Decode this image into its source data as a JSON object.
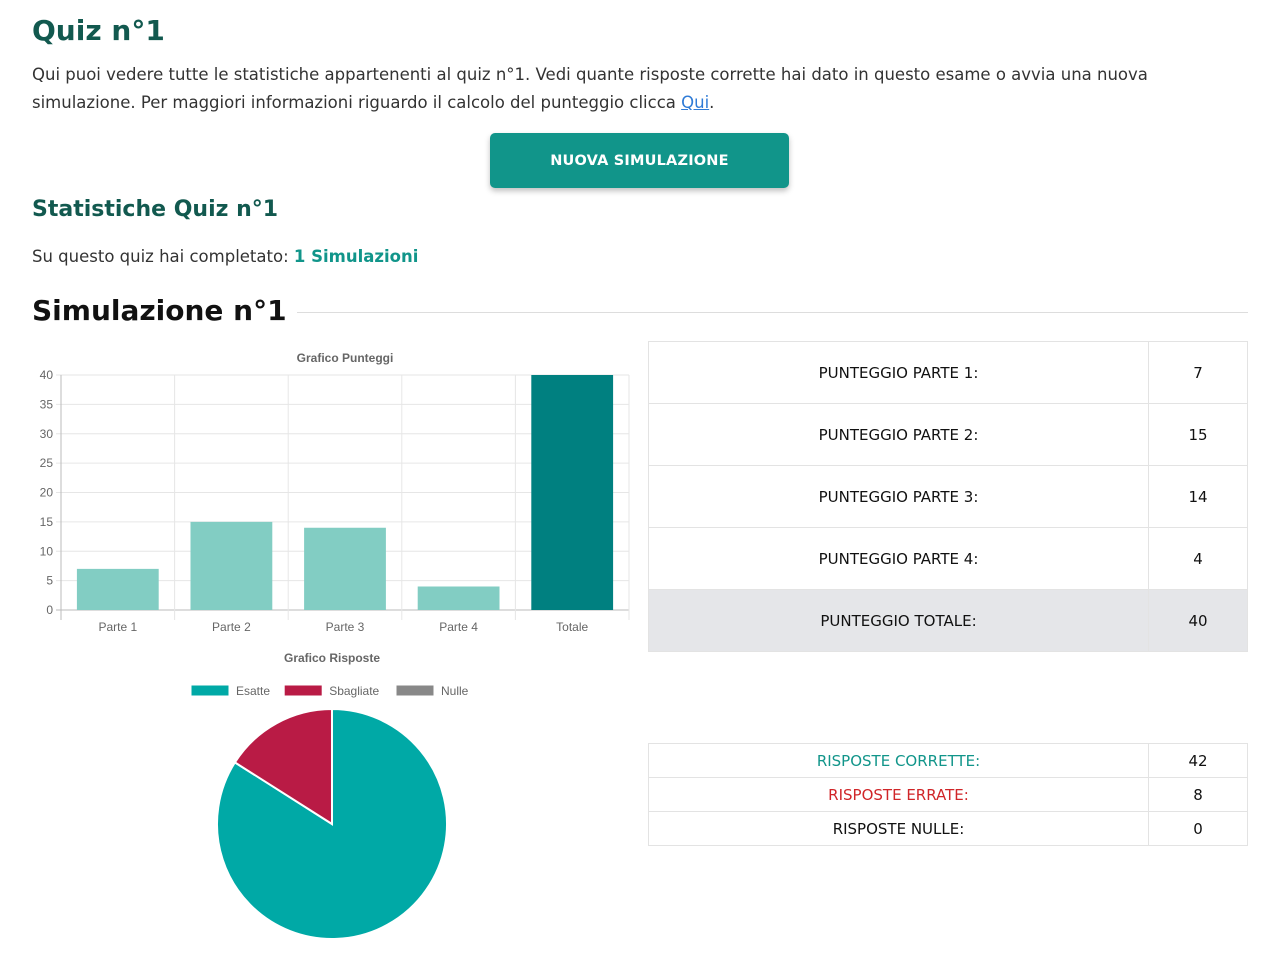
{
  "header": {
    "title": "Quiz n°1",
    "intro_text": "Qui puoi vedere tutte le statistiche appartenenti al quiz n°1. Vedi quante risposte corrette hai dato in questo esame o avvia una nuova simulazione. Per maggiori informazioni riguardo il calcolo del punteggio clicca ",
    "intro_link": "Qui",
    "intro_end": "."
  },
  "actions": {
    "new_simulation": "NUOVA SIMULAZIONE"
  },
  "stats": {
    "title": "Statistiche Quiz n°1",
    "completed_label": "Su questo quiz hai completato: ",
    "completed_value": "1 Simulazioni"
  },
  "simulation": {
    "title": "Simulazione n°1"
  },
  "colors": {
    "brand_dark": "#12594f",
    "brand": "#11958a",
    "bar_light": "#82cdc3",
    "bar_total": "#008080",
    "pie_correct": "#00a9a6",
    "pie_wrong": "#b91b45",
    "pie_null": "#888888"
  },
  "chart_data": [
    {
      "type": "bar",
      "title": "Grafico Punteggi",
      "categories": [
        "Parte 1",
        "Parte 2",
        "Parte 3",
        "Parte 4",
        "Totale"
      ],
      "values": [
        7,
        15,
        14,
        4,
        40
      ],
      "ylim": [
        0,
        40
      ],
      "yticks": [
        0,
        5,
        10,
        15,
        20,
        25,
        30,
        35,
        40
      ],
      "grid": true
    },
    {
      "type": "pie",
      "title": "Grafico Risposte",
      "labels": [
        "Esatte",
        "Sbagliate",
        "Nulle"
      ],
      "values": [
        42,
        8,
        0
      ],
      "legend": "top"
    }
  ],
  "score_table": {
    "rows": [
      {
        "label": "PUNTEGGIO PARTE 1:",
        "value": "7"
      },
      {
        "label": "PUNTEGGIO PARTE 2:",
        "value": "15"
      },
      {
        "label": "PUNTEGGIO PARTE 3:",
        "value": "14"
      },
      {
        "label": "PUNTEGGIO PARTE 4:",
        "value": "4"
      }
    ],
    "total_label": "PUNTEGGIO TOTALE:",
    "total_value": "40"
  },
  "answers_table": {
    "correct_label": "RISPOSTE CORRETTE:",
    "correct_value": "42",
    "wrong_label": "RISPOSTE ERRATE:",
    "wrong_value": "8",
    "null_label": "RISPOSTE NULLE:",
    "null_value": "0"
  }
}
